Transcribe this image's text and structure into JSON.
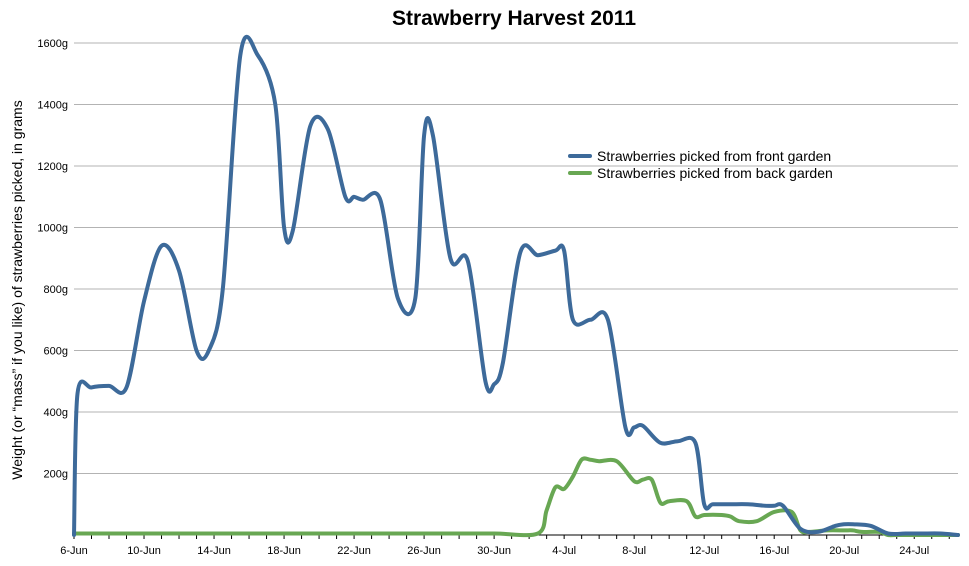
{
  "chart_data": {
    "type": "line",
    "title": "Strawberry Harvest 2011",
    "ylabel": "Weight (or “mass” if you like) of strawberries picked, in grams",
    "xlabel": "",
    "ylim": [
      0,
      1600
    ],
    "yticks": [
      {
        "value": 200,
        "label": "200g"
      },
      {
        "value": 400,
        "label": "400g"
      },
      {
        "value": 600,
        "label": "600g"
      },
      {
        "value": 800,
        "label": "800g"
      },
      {
        "value": 1000,
        "label": "1000g"
      },
      {
        "value": 1200,
        "label": "1200g"
      },
      {
        "value": 1400,
        "label": "1400g"
      },
      {
        "value": 1600,
        "label": "1600g"
      }
    ],
    "xticks": [
      {
        "value": 0,
        "label": "6-Jun"
      },
      {
        "value": 4,
        "label": "10-Jun"
      },
      {
        "value": 8,
        "label": "14-Jun"
      },
      {
        "value": 12,
        "label": "18-Jun"
      },
      {
        "value": 16,
        "label": "22-Jun"
      },
      {
        "value": 20,
        "label": "26-Jun"
      },
      {
        "value": 24,
        "label": "30-Jun"
      },
      {
        "value": 28,
        "label": "4-Jul"
      },
      {
        "value": 32,
        "label": "8-Jul"
      },
      {
        "value": 36,
        "label": "12-Jul"
      },
      {
        "value": 40,
        "label": "16-Jul"
      },
      {
        "value": 44,
        "label": "20-Jul"
      },
      {
        "value": 48,
        "label": "24-Jul"
      }
    ],
    "grid": true,
    "legend": "upper-right",
    "series": [
      {
        "name": "Strawberries picked from front garden",
        "color": "#3d6a9a",
        "x": [
          0,
          0.2,
          1,
          2,
          3,
          4,
          5,
          6,
          7,
          7.7,
          8.5,
          9.5,
          10.5,
          11.5,
          12,
          12.5,
          13.5,
          14.5,
          15.5,
          16,
          16.5,
          17.5,
          18.5,
          19.5,
          20,
          20.5,
          21.5,
          22.5,
          23.5,
          24,
          24.5,
          25.5,
          26.5,
          27.5,
          28,
          28.5,
          29.5,
          30.5,
          31.5,
          32,
          32.5,
          33.5,
          34.5,
          35.5,
          36,
          36.5,
          37.5,
          38.5,
          39.5,
          40,
          40.5,
          41.5,
          42.5,
          43.5,
          44,
          44.5,
          45.5,
          46.5,
          47.5,
          48,
          48.5,
          49.5,
          50.5
        ],
        "values": [
          0,
          460,
          480,
          485,
          480,
          760,
          940,
          860,
          600,
          600,
          800,
          1560,
          1560,
          1400,
          1000,
          990,
          1330,
          1320,
          1100,
          1100,
          1090,
          1090,
          770,
          770,
          1300,
          1300,
          900,
          890,
          500,
          490,
          560,
          920,
          910,
          925,
          925,
          700,
          700,
          700,
          350,
          350,
          355,
          300,
          305,
          300,
          100,
          100,
          100,
          100,
          95,
          95,
          95,
          20,
          10,
          30,
          35,
          35,
          30,
          5,
          5,
          5,
          5,
          5,
          0
        ]
      },
      {
        "name": "Strawberries picked from back garden",
        "color": "#68a753",
        "x": [
          0,
          3,
          6,
          9,
          12,
          15,
          18,
          21,
          24,
          26.5,
          27,
          27.5,
          28,
          28.5,
          29,
          29.5,
          30,
          31,
          32,
          32.5,
          33,
          33.5,
          34,
          35,
          35.5,
          36,
          37,
          37.5,
          38,
          39,
          40,
          41,
          41.5,
          42,
          43,
          44,
          44.5,
          45,
          46,
          46.5,
          47,
          48,
          49,
          50,
          50.5
        ],
        "values": [
          5,
          5,
          5,
          5,
          5,
          5,
          5,
          5,
          5,
          5,
          80,
          155,
          150,
          190,
          245,
          245,
          240,
          240,
          175,
          180,
          180,
          105,
          110,
          110,
          60,
          65,
          65,
          60,
          45,
          45,
          75,
          75,
          15,
          10,
          15,
          15,
          15,
          10,
          10,
          0,
          0,
          0,
          0,
          0,
          0
        ]
      }
    ]
  }
}
